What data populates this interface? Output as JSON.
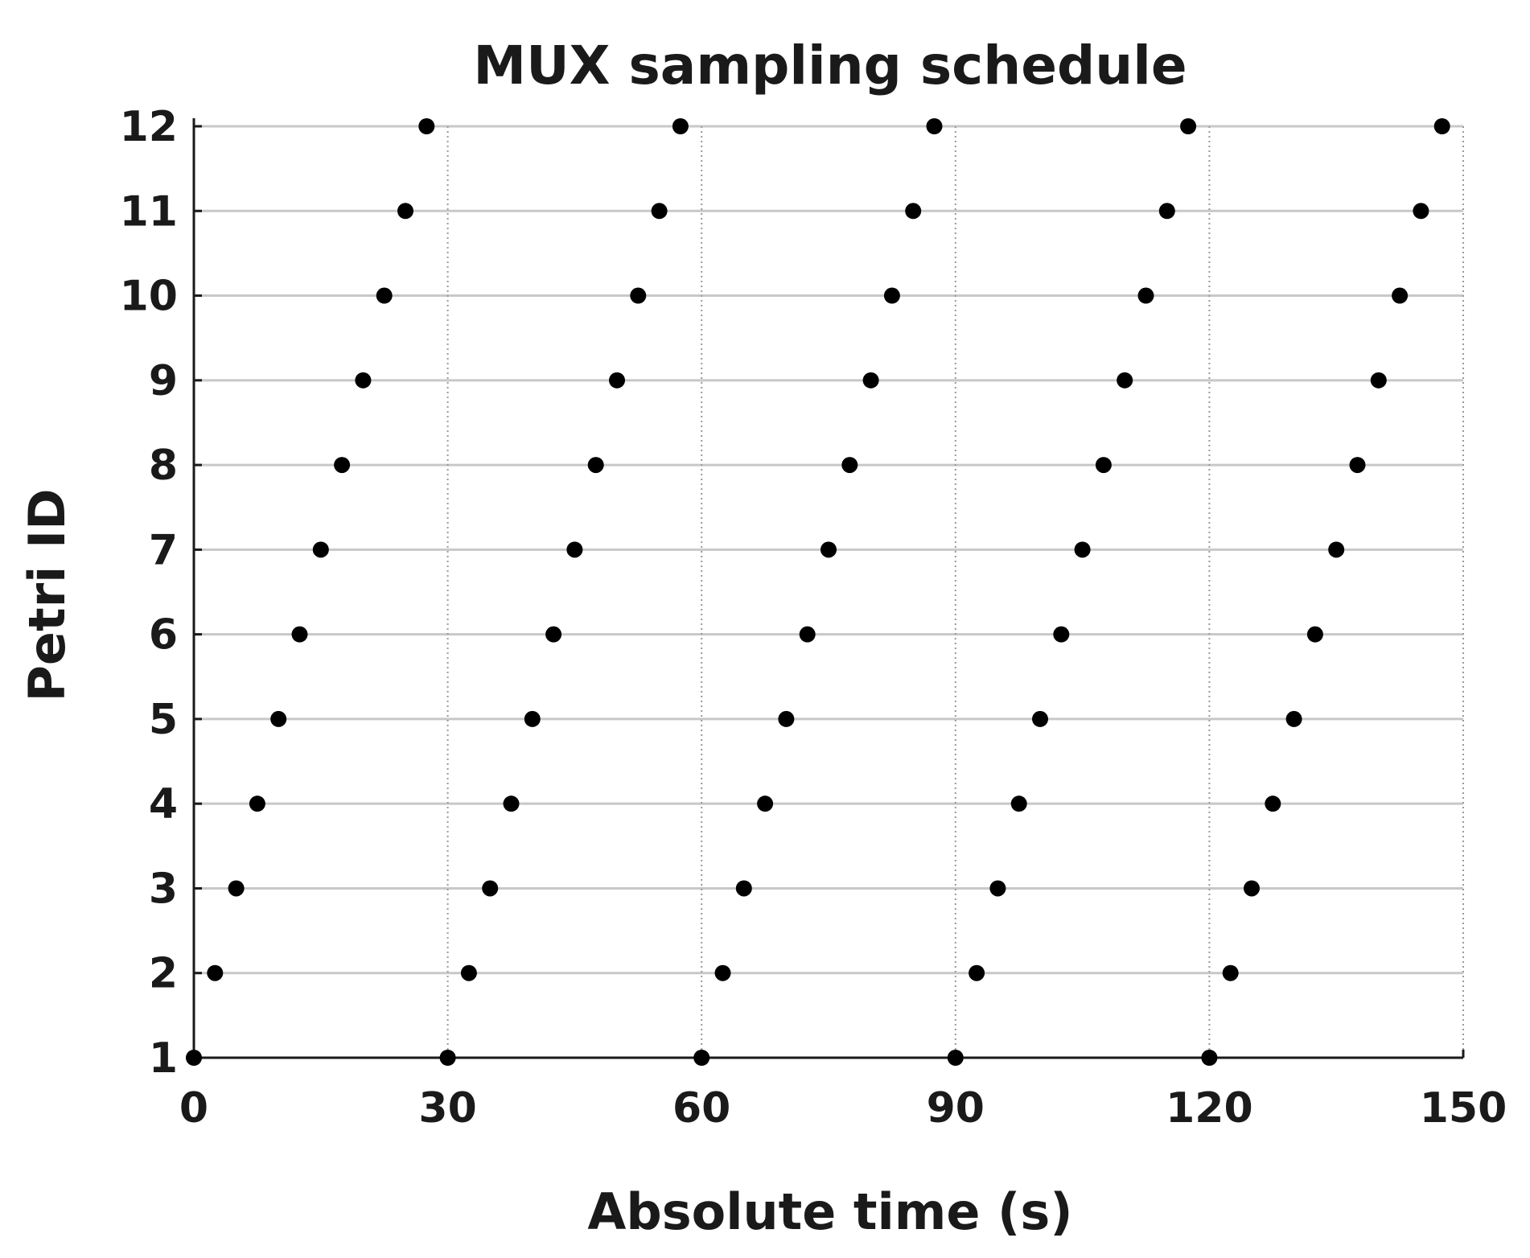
{
  "chart_data": {
    "type": "scatter",
    "title": "MUX sampling schedule",
    "xlabel": "Absolute time (s)",
    "ylabel": "Petri ID",
    "xlim": [
      0,
      150
    ],
    "ylim": [
      1,
      12
    ],
    "xticks": [
      0,
      30,
      60,
      90,
      120,
      150
    ],
    "yticks": [
      1,
      2,
      3,
      4,
      5,
      6,
      7,
      8,
      9,
      10,
      11,
      12
    ],
    "grid": {
      "x": "dotted vertical at major ticks",
      "y": "solid horizontal at every tick"
    },
    "legend": "none",
    "marker_color": "#000000",
    "series": [
      {
        "points": [
          {
            "x": 0,
            "y": 1
          },
          {
            "x": 2.5,
            "y": 2
          },
          {
            "x": 5,
            "y": 3
          },
          {
            "x": 7.5,
            "y": 4
          },
          {
            "x": 10,
            "y": 5
          },
          {
            "x": 12.5,
            "y": 6
          },
          {
            "x": 15,
            "y": 7
          },
          {
            "x": 17.5,
            "y": 8
          },
          {
            "x": 20,
            "y": 9
          },
          {
            "x": 22.5,
            "y": 10
          },
          {
            "x": 25,
            "y": 11
          },
          {
            "x": 27.5,
            "y": 12
          },
          {
            "x": 30,
            "y": 1
          },
          {
            "x": 32.5,
            "y": 2
          },
          {
            "x": 35,
            "y": 3
          },
          {
            "x": 37.5,
            "y": 4
          },
          {
            "x": 40,
            "y": 5
          },
          {
            "x": 42.5,
            "y": 6
          },
          {
            "x": 45,
            "y": 7
          },
          {
            "x": 47.5,
            "y": 8
          },
          {
            "x": 50,
            "y": 9
          },
          {
            "x": 52.5,
            "y": 10
          },
          {
            "x": 55,
            "y": 11
          },
          {
            "x": 57.5,
            "y": 12
          },
          {
            "x": 60,
            "y": 1
          },
          {
            "x": 62.5,
            "y": 2
          },
          {
            "x": 65,
            "y": 3
          },
          {
            "x": 67.5,
            "y": 4
          },
          {
            "x": 70,
            "y": 5
          },
          {
            "x": 72.5,
            "y": 6
          },
          {
            "x": 75,
            "y": 7
          },
          {
            "x": 77.5,
            "y": 8
          },
          {
            "x": 80,
            "y": 9
          },
          {
            "x": 82.5,
            "y": 10
          },
          {
            "x": 85,
            "y": 11
          },
          {
            "x": 87.5,
            "y": 12
          },
          {
            "x": 90,
            "y": 1
          },
          {
            "x": 92.5,
            "y": 2
          },
          {
            "x": 95,
            "y": 3
          },
          {
            "x": 97.5,
            "y": 4
          },
          {
            "x": 100,
            "y": 5
          },
          {
            "x": 102.5,
            "y": 6
          },
          {
            "x": 105,
            "y": 7
          },
          {
            "x": 107.5,
            "y": 8
          },
          {
            "x": 110,
            "y": 9
          },
          {
            "x": 112.5,
            "y": 10
          },
          {
            "x": 115,
            "y": 11
          },
          {
            "x": 117.5,
            "y": 12
          },
          {
            "x": 120,
            "y": 1
          },
          {
            "x": 122.5,
            "y": 2
          },
          {
            "x": 125,
            "y": 3
          },
          {
            "x": 127.5,
            "y": 4
          },
          {
            "x": 130,
            "y": 5
          },
          {
            "x": 132.5,
            "y": 6
          },
          {
            "x": 135,
            "y": 7
          },
          {
            "x": 137.5,
            "y": 8
          },
          {
            "x": 140,
            "y": 9
          },
          {
            "x": 142.5,
            "y": 10
          },
          {
            "x": 145,
            "y": 11
          },
          {
            "x": 147.5,
            "y": 12
          }
        ]
      }
    ]
  }
}
